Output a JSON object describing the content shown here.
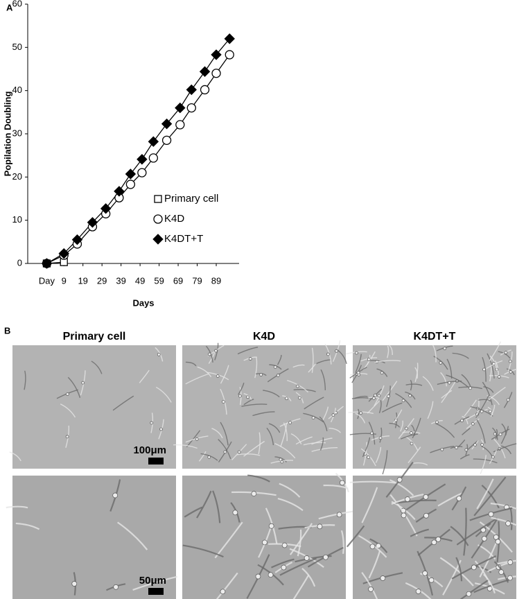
{
  "panel_a_label": "A",
  "chart_data": {
    "type": "line",
    "y_label": "Popilation Doubling",
    "x_label": "Days",
    "xlim": [
      -10,
      101
    ],
    "ylim": [
      0,
      60
    ],
    "xticks": [
      {
        "value": 0,
        "label": "Day"
      },
      9,
      19,
      29,
      39,
      49,
      59,
      69,
      79,
      89
    ],
    "yticks": [
      0,
      10,
      20,
      30,
      40,
      50,
      60
    ],
    "legend": "center",
    "series": [
      {
        "name": "Primary cell",
        "color": "#000000",
        "marker": "open-square",
        "x": [
          0,
          9
        ],
        "values": [
          0,
          0.3
        ]
      },
      {
        "name": "K4D",
        "color": "#000000",
        "marker": "open-circle",
        "x": [
          0,
          9,
          16,
          24,
          31,
          38,
          44,
          50,
          56,
          63,
          70,
          76,
          83,
          89,
          96
        ],
        "values": [
          0,
          1.9,
          4.5,
          8.5,
          11.5,
          15.2,
          18.3,
          21,
          24.4,
          28.5,
          32.1,
          36,
          40.2,
          44,
          48.3
        ]
      },
      {
        "name": "K4DT+T",
        "color": "#000000",
        "marker": "filled-diamond",
        "x": [
          0,
          9,
          16,
          24,
          31,
          38,
          44,
          50,
          56,
          63,
          70,
          76,
          83,
          89,
          96
        ],
        "values": [
          0,
          2.3,
          5.5,
          9.5,
          12.7,
          16.7,
          20.7,
          24.1,
          28.2,
          32.3,
          36,
          40.2,
          44.4,
          48.3,
          52
        ]
      }
    ]
  },
  "panel_b": {
    "label": "B",
    "columns": [
      "Primary cell",
      "K4D",
      "K4DT+T"
    ],
    "scale_bars": [
      "100μm",
      "50μm"
    ]
  }
}
